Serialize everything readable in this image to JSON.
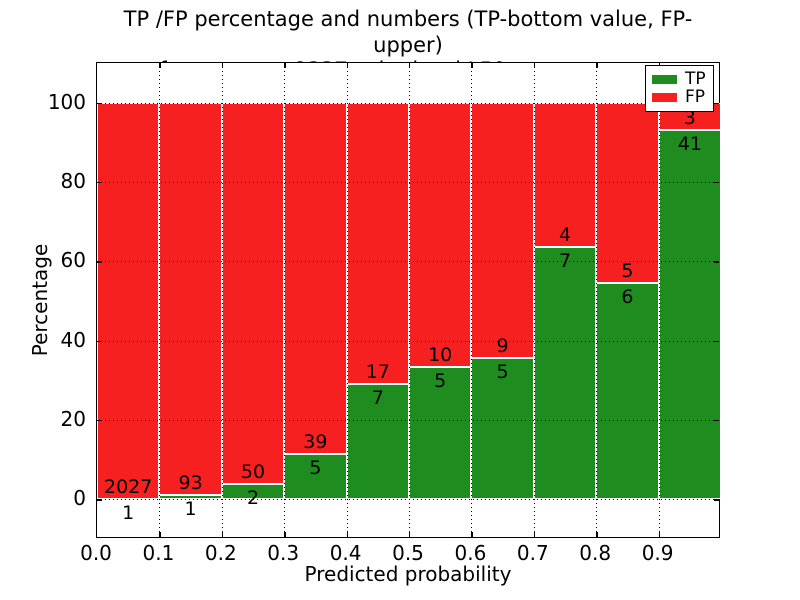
{
  "figure": {
    "title_line1": "TP /FP percentage and numbers (TP-bottom value, FP-upper)",
    "title_line2": "from among 2337 submitted L50-type contacts"
  },
  "chart_data": {
    "type": "bar",
    "stacked": true,
    "title": "TP /FP percentage and numbers (TP-bottom value, FP-upper) from among 2337 submitted L50-type contacts",
    "xlabel": "Predicted probability",
    "ylabel": "Percentage",
    "xlim": [
      0.0,
      1.0
    ],
    "ylim": [
      -10,
      110
    ],
    "xticks": [
      "0.0",
      "0.1",
      "0.2",
      "0.3",
      "0.4",
      "0.5",
      "0.6",
      "0.7",
      "0.8",
      "0.9"
    ],
    "yticks": [
      0,
      20,
      40,
      60,
      80,
      100
    ],
    "grid": "dotted black, both axes, drawn above bars",
    "bin_width": 0.1,
    "bin_starts": [
      0.0,
      0.1,
      0.2,
      0.3,
      0.4,
      0.5,
      0.6,
      0.7,
      0.8,
      0.9
    ],
    "series": [
      {
        "name": "TP",
        "color": "#1e8c1e",
        "counts": [
          1,
          1,
          2,
          5,
          7,
          5,
          5,
          7,
          6,
          41
        ]
      },
      {
        "name": "FP",
        "color": "#f72020",
        "counts": [
          2027,
          93,
          50,
          39,
          17,
          10,
          9,
          4,
          5,
          3
        ]
      }
    ],
    "tp_percent_per_bin": [
      0.05,
      1.06,
      3.85,
      11.36,
      29.17,
      33.33,
      35.71,
      63.64,
      54.55,
      93.18
    ],
    "total_contacts": 2337,
    "bar_edge_color": "#ffffff",
    "legend": {
      "position": "upper right",
      "entries": [
        "TP",
        "FP"
      ]
    }
  }
}
